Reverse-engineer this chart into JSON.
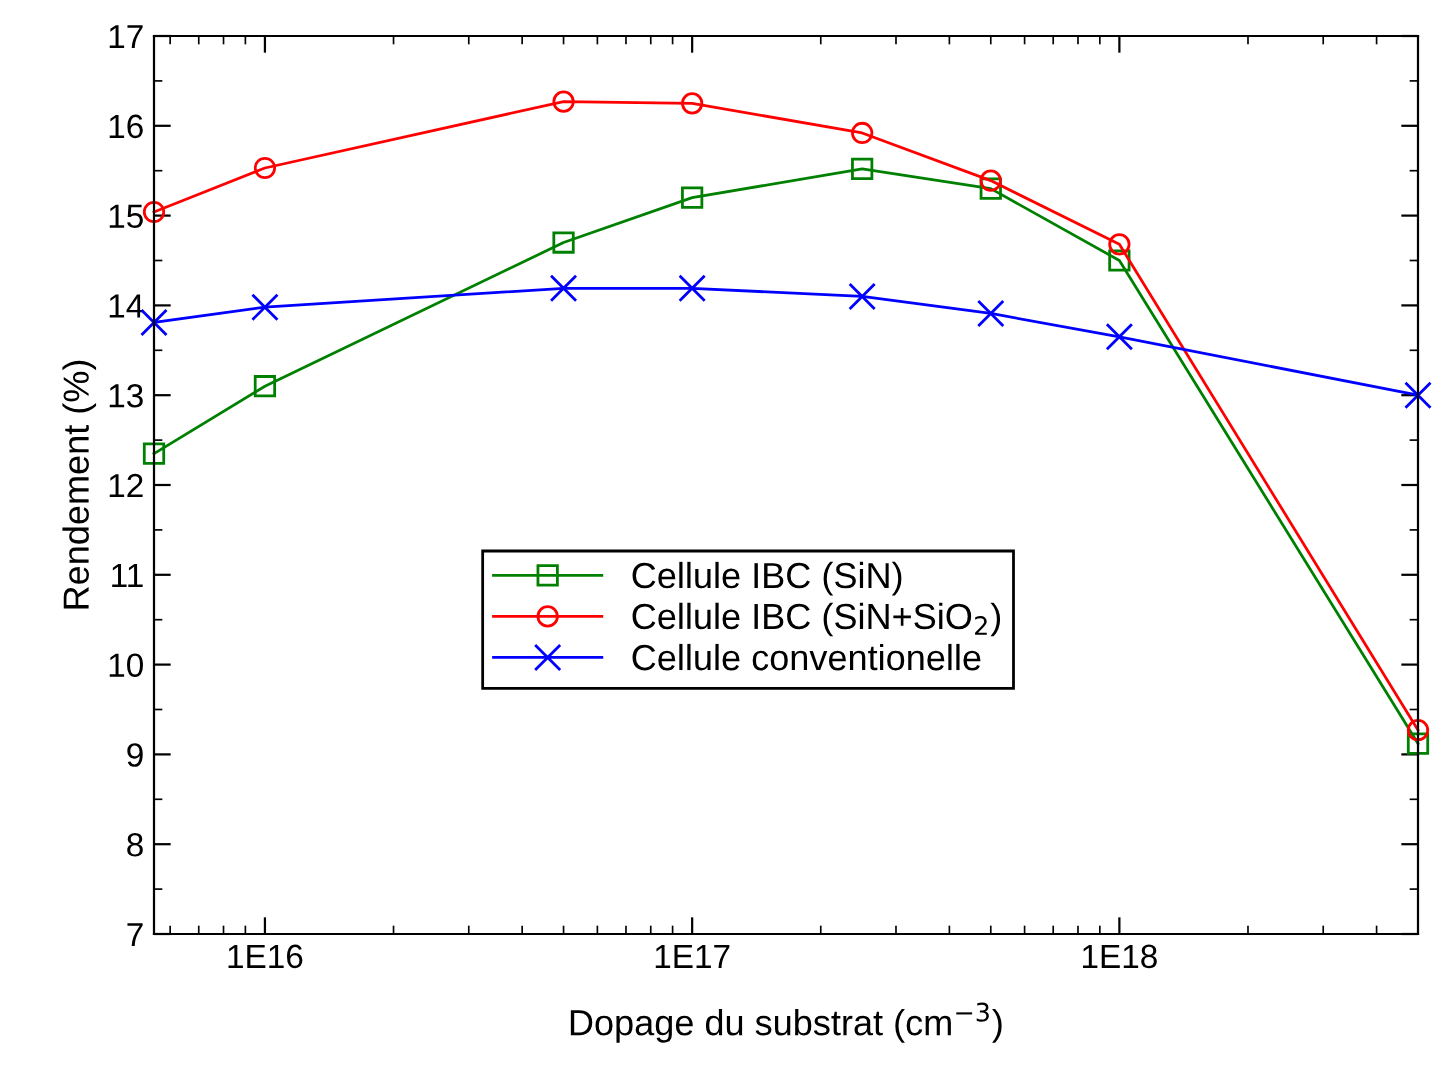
{
  "chart_data": {
    "type": "line",
    "xlabel": "Dopage du substrat (cm$^{−3}$)",
    "ylabel": "Rendement (%)",
    "x": [
      5500000000000000.0,
      1e+16,
      5e+16,
      1e+17,
      2.5e+17,
      5e+17,
      1e+18,
      5e+18
    ],
    "series": [
      {
        "name": "Cellule IBC (SiN)",
        "color": "#008000",
        "marker": "square",
        "values": [
          12.35,
          13.1,
          14.7,
          15.2,
          15.52,
          15.3,
          14.5,
          9.12
        ]
      },
      {
        "name": "Cellule IBC (SiN+SiO$_{2}$)",
        "color": "#ff0000",
        "marker": "circle",
        "values": [
          15.04,
          15.53,
          16.27,
          16.25,
          15.92,
          15.39,
          14.68,
          9.27
        ]
      },
      {
        "name": "Cellule conventionelle",
        "color": "#0000ff",
        "marker": "cross",
        "values": [
          13.81,
          13.98,
          14.19,
          14.19,
          14.1,
          13.91,
          13.65,
          13.0
        ]
      }
    ],
    "log": "x",
    "xlim": [
      5500000000000000.0,
      5e+18
    ],
    "xticks": [
      {
        "value": 1e+16,
        "label": "1E16"
      },
      {
        "value": 1e+17,
        "label": "1E17"
      },
      {
        "value": 1e+18,
        "label": "1E18"
      }
    ],
    "ylim": [
      7,
      17
    ],
    "yticks": [
      7,
      8,
      9,
      10,
      11,
      12,
      13,
      14,
      15,
      16,
      17
    ],
    "grid": false,
    "legend": "center",
    "line_style": "solid"
  }
}
